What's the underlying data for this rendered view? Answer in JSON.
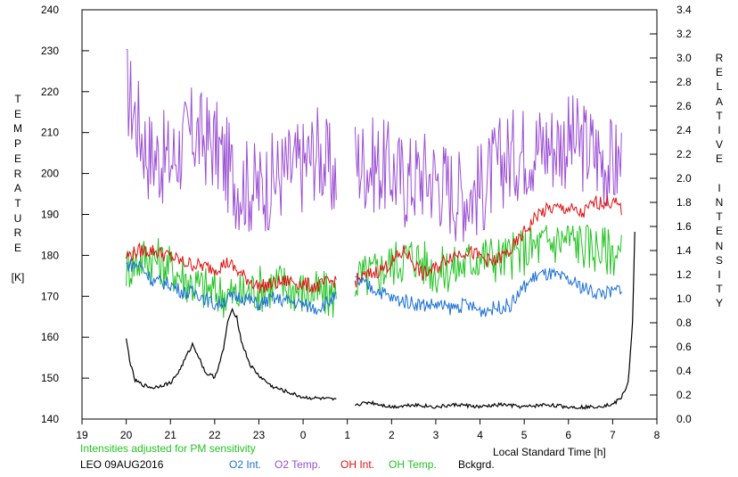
{
  "chart_data": {
    "type": "line",
    "left_axis_label": [
      "T",
      "E",
      "M",
      "P",
      "E",
      "R",
      "A",
      "T",
      "U",
      "R",
      "E",
      "",
      "[K]"
    ],
    "right_axis_label": [
      "R",
      "E",
      "L",
      "A",
      "T",
      "I",
      "V",
      "E",
      "",
      "I",
      "N",
      "T",
      "E",
      "N",
      "S",
      "I",
      "T",
      "Y"
    ],
    "left_ylim": [
      140,
      240
    ],
    "left_ticks": [
      "240",
      "230",
      "220",
      "210",
      "200",
      "190",
      "180",
      "170",
      "160",
      "150",
      "140"
    ],
    "right_ylim": [
      0.0,
      3.4
    ],
    "right_ticks": [
      "3.4",
      "3.2",
      "3.0",
      "2.8",
      "2.6",
      "2.4",
      "2.2",
      "2.0",
      "1.8",
      "1.6",
      "1.4",
      "1.2",
      "1.0",
      "0.8",
      "0.6",
      "0.4",
      "0.2",
      "0.0"
    ],
    "xlim": [
      19,
      32
    ],
    "x_ticks": [
      "19",
      "20",
      "21",
      "22",
      "23",
      "0",
      "1",
      "2",
      "3",
      "4",
      "5",
      "6",
      "7",
      "8"
    ],
    "xlabel": "Local Standard Time [h]",
    "note": "Intensities adjusted for PM sensitivity",
    "station": "LEO 09AUG2016",
    "legend": [
      {
        "name": "O2 Int.",
        "color": "#1a6fd6"
      },
      {
        "name": "O2 Temp.",
        "color": "#9b4fd4"
      },
      {
        "name": "OH Int.",
        "color": "#e01010"
      },
      {
        "name": "OH Temp.",
        "color": "#22c422"
      },
      {
        "name": "Bckgrd.",
        "color": "#000000"
      }
    ],
    "series": [
      {
        "name": "O2 Temp.",
        "axis": "left",
        "color": "#9b4fd4",
        "x": [
          20.0,
          20.5,
          21.0,
          21.5,
          22.0,
          22.5,
          23.0,
          23.5,
          24.0,
          24.3,
          24.7,
          25.2,
          25.7,
          26.0,
          26.3,
          26.7,
          27.0,
          27.5,
          28.0,
          28.5,
          29.0,
          29.5,
          30.0,
          30.5,
          31.0,
          31.2
        ],
        "y": [
          221,
          205,
          203,
          210,
          207,
          198,
          196,
          200,
          202,
          206,
          199,
          203,
          202,
          201,
          198,
          200,
          199,
          195,
          196,
          203,
          206,
          207,
          208,
          206,
          202,
          203
        ]
      },
      {
        "name": "OH Temp.",
        "axis": "left",
        "color": "#22c422",
        "x": [
          20.0,
          20.5,
          21.0,
          21.5,
          22.0,
          22.5,
          23.0,
          23.5,
          24.0,
          24.7,
          25.2,
          25.7,
          26.0,
          26.5,
          27.0,
          27.5,
          28.0,
          28.5,
          29.0,
          29.5,
          30.0,
          30.5,
          31.0,
          31.2
        ],
        "y": [
          177,
          180,
          177,
          173,
          171,
          170,
          172,
          173,
          171,
          170,
          174,
          176,
          178,
          180,
          176,
          177,
          180,
          179,
          181,
          183,
          184,
          182,
          181,
          180
        ]
      },
      {
        "name": "OH Int.",
        "axis": "right",
        "color": "#e01010",
        "x": [
          20.0,
          20.3,
          20.6,
          21.0,
          21.3,
          21.6,
          22.0,
          22.3,
          22.6,
          23.0,
          23.3,
          23.7,
          24.0,
          24.3,
          24.7,
          25.2,
          25.5,
          25.8,
          26.0,
          26.3,
          26.7,
          27.0,
          27.3,
          27.7,
          28.0,
          28.3,
          28.7,
          29.0,
          29.3,
          29.6,
          30.0,
          30.3,
          30.6,
          31.0,
          31.2
        ],
        "y": [
          1.35,
          1.4,
          1.4,
          1.35,
          1.3,
          1.28,
          1.25,
          1.3,
          1.2,
          1.1,
          1.12,
          1.15,
          1.12,
          1.1,
          1.15,
          1.15,
          1.2,
          1.25,
          1.3,
          1.4,
          1.2,
          1.25,
          1.35,
          1.4,
          1.35,
          1.3,
          1.4,
          1.55,
          1.7,
          1.75,
          1.75,
          1.7,
          1.8,
          1.8,
          1.75
        ]
      },
      {
        "name": "O2 Int.",
        "axis": "right",
        "color": "#1a6fd6",
        "x": [
          20.0,
          20.3,
          20.6,
          21.0,
          21.3,
          21.6,
          22.0,
          22.3,
          22.6,
          23.0,
          23.3,
          23.7,
          24.0,
          24.3,
          24.7,
          25.2,
          25.5,
          25.8,
          26.0,
          26.3,
          26.7,
          27.0,
          27.3,
          27.7,
          28.0,
          28.3,
          28.7,
          29.0,
          29.3,
          29.6,
          30.0,
          30.3,
          30.6,
          31.0,
          31.2
        ],
        "y": [
          1.28,
          1.28,
          1.15,
          1.12,
          1.05,
          1.05,
          0.95,
          1.0,
          1.02,
          0.95,
          1.0,
          0.98,
          0.95,
          0.92,
          1.0,
          1.15,
          1.1,
          1.05,
          1.0,
          0.98,
          0.95,
          0.95,
          0.92,
          0.95,
          0.9,
          0.92,
          0.95,
          1.1,
          1.2,
          1.2,
          1.15,
          1.1,
          1.05,
          1.05,
          1.1
        ]
      },
      {
        "name": "Bckgrd.",
        "axis": "right",
        "color": "#000000",
        "x": [
          20.0,
          20.1,
          20.2,
          20.4,
          20.6,
          20.8,
          21.0,
          21.2,
          21.4,
          21.5,
          21.6,
          21.8,
          22.0,
          22.1,
          22.2,
          22.3,
          22.4,
          22.5,
          22.6,
          22.8,
          23.0,
          23.3,
          23.6,
          24.0,
          24.4,
          24.7,
          25.2,
          25.5,
          26.0,
          26.5,
          27.0,
          27.5,
          28.0,
          28.5,
          29.0,
          29.5,
          30.0,
          30.5,
          31.0,
          31.2,
          31.35,
          31.45,
          31.5
        ],
        "y": [
          0.66,
          0.45,
          0.32,
          0.28,
          0.26,
          0.28,
          0.3,
          0.4,
          0.55,
          0.62,
          0.55,
          0.38,
          0.35,
          0.45,
          0.58,
          0.82,
          0.9,
          0.85,
          0.65,
          0.45,
          0.36,
          0.27,
          0.23,
          0.18,
          0.17,
          0.16,
          0.12,
          0.14,
          0.1,
          0.12,
          0.1,
          0.12,
          0.1,
          0.12,
          0.1,
          0.12,
          0.1,
          0.1,
          0.12,
          0.18,
          0.3,
          0.8,
          1.55
        ]
      }
    ]
  }
}
